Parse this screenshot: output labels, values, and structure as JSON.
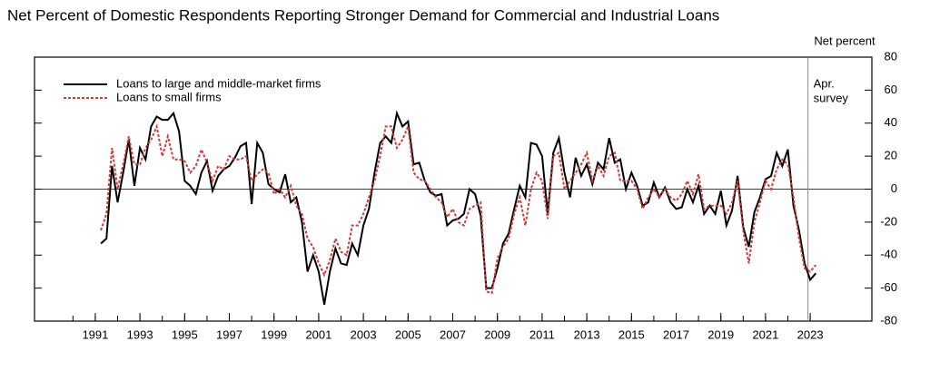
{
  "chart_data": {
    "type": "line",
    "title": "Net Percent of Domestic Respondents Reporting Stronger Demand for Commercial and Industrial Loans",
    "y_axis_label": "Net percent",
    "annotation": {
      "lines": [
        "Apr.",
        "survey"
      ],
      "x": 2022.9
    },
    "legend": "upper left",
    "xlim": [
      1988.28,
      2025.76
    ],
    "xticks": [
      1991,
      1993,
      1995,
      1997,
      1999,
      2001,
      2003,
      2005,
      2007,
      2009,
      2011,
      2013,
      2015,
      2017,
      2019,
      2021,
      2023
    ],
    "xminor": [
      1990,
      1991,
      1992,
      1993,
      1994,
      1995,
      1996,
      1997,
      1998,
      1999,
      2000,
      2001,
      2002,
      2003,
      2004,
      2005,
      2006,
      2007,
      2008,
      2009,
      2010,
      2011,
      2012,
      2013,
      2014,
      2015,
      2016,
      2017,
      2018,
      2019,
      2020,
      2021,
      2022,
      2023
    ],
    "ylim": [
      -80,
      80
    ],
    "yticks": [
      -80,
      -60,
      -40,
      -20,
      0,
      20,
      40,
      60,
      80
    ],
    "x": [
      1991.25,
      1991.5,
      1991.75,
      1992,
      1992.25,
      1992.5,
      1992.75,
      1993,
      1993.25,
      1993.5,
      1993.75,
      1994,
      1994.25,
      1994.5,
      1994.75,
      1995,
      1995.25,
      1995.5,
      1995.75,
      1996,
      1996.25,
      1996.5,
      1996.75,
      1997,
      1997.25,
      1997.5,
      1997.75,
      1998,
      1998.25,
      1998.5,
      1998.75,
      1999,
      1999.25,
      1999.5,
      1999.75,
      2000,
      2000.25,
      2000.5,
      2000.75,
      2001,
      2001.25,
      2001.5,
      2001.75,
      2002,
      2002.25,
      2002.5,
      2002.75,
      2003,
      2003.25,
      2003.5,
      2003.75,
      2004,
      2004.25,
      2004.5,
      2004.75,
      2005,
      2005.25,
      2005.5,
      2005.75,
      2006,
      2006.25,
      2006.5,
      2006.75,
      2007,
      2007.25,
      2007.5,
      2007.75,
      2008,
      2008.25,
      2008.5,
      2008.75,
      2009,
      2009.25,
      2009.5,
      2009.75,
      2010,
      2010.25,
      2010.5,
      2010.75,
      2011,
      2011.25,
      2011.5,
      2011.75,
      2012,
      2012.25,
      2012.5,
      2012.75,
      2013,
      2013.25,
      2013.5,
      2013.75,
      2014,
      2014.25,
      2014.5,
      2014.75,
      2015,
      2015.25,
      2015.5,
      2015.75,
      2016,
      2016.25,
      2016.5,
      2016.75,
      2017,
      2017.25,
      2017.5,
      2017.75,
      2018,
      2018.25,
      2018.5,
      2018.75,
      2019,
      2019.25,
      2019.5,
      2019.75,
      2020,
      2020.25,
      2020.5,
      2020.75,
      2021,
      2021.25,
      2021.5,
      2021.75,
      2022,
      2022.25,
      2022.5,
      2022.75,
      2023,
      2023.25
    ],
    "series": [
      {
        "name": "Loans to large and middle-market firms",
        "color": "#000000",
        "dash": false,
        "values": [
          -33,
          -30,
          14,
          -8,
          10,
          30,
          2,
          25,
          18,
          38,
          44,
          42,
          42,
          46,
          35,
          5,
          2,
          -3,
          10,
          17,
          -1,
          8,
          12,
          14,
          19,
          26,
          28,
          -9,
          28,
          22,
          3,
          0,
          -2,
          9,
          -8,
          -5,
          -20,
          -50,
          -40,
          -50,
          -70,
          -50,
          -36,
          -45,
          -46,
          -33,
          -40,
          -22,
          -12,
          10,
          28,
          32,
          28,
          46,
          38,
          41,
          15,
          16,
          5,
          -2,
          -4,
          -3,
          -22,
          -19,
          -18,
          -15,
          0,
          -3,
          -16,
          -60,
          -60,
          -48,
          -33,
          -27,
          -12,
          2,
          -5,
          28,
          27,
          20,
          -15,
          22,
          31,
          10,
          -5,
          19,
          8,
          15,
          3,
          16,
          12,
          31,
          16,
          18,
          0,
          10,
          2,
          -10,
          -8,
          4,
          -5,
          1,
          -8,
          -12,
          -11,
          0,
          -8,
          2,
          -15,
          -10,
          -15,
          -1,
          -22,
          -13,
          8,
          -23,
          -35,
          -14,
          -5,
          6,
          8,
          22,
          14,
          24,
          -10,
          -25,
          -45,
          -55,
          -51
        ]
      },
      {
        "name": "Loans to small firms",
        "color": "#d03a3a",
        "dash": true,
        "values": [
          -25,
          -15,
          25,
          0,
          15,
          32,
          15,
          15,
          25,
          30,
          38,
          20,
          32,
          18,
          18,
          17,
          10,
          14,
          24,
          16,
          5,
          14,
          12,
          20,
          18,
          18,
          20,
          5,
          9,
          12,
          10,
          -3,
          0,
          -5,
          2,
          -10,
          -15,
          -30,
          -35,
          -45,
          -52,
          -43,
          -30,
          -38,
          -40,
          -22,
          -22,
          -15,
          -5,
          5,
          20,
          38,
          38,
          25,
          30,
          38,
          10,
          6,
          5,
          0,
          -5,
          -8,
          -17,
          -12,
          -20,
          -22,
          -12,
          -10,
          -8,
          -62,
          -63,
          -42,
          -35,
          -30,
          -15,
          -5,
          -22,
          0,
          10,
          5,
          -18,
          20,
          22,
          0,
          5,
          10,
          15,
          22,
          5,
          14,
          8,
          20,
          22,
          5,
          5,
          5,
          0,
          -12,
          -5,
          0,
          -5,
          0,
          -5,
          -7,
          -3,
          5,
          -3,
          9,
          -12,
          -10,
          -10,
          -10,
          -15,
          -8,
          5,
          -25,
          -45,
          -20,
          -8,
          5,
          0,
          12,
          18,
          15,
          -5,
          -30,
          -48,
          -50,
          -46
        ]
      }
    ]
  }
}
